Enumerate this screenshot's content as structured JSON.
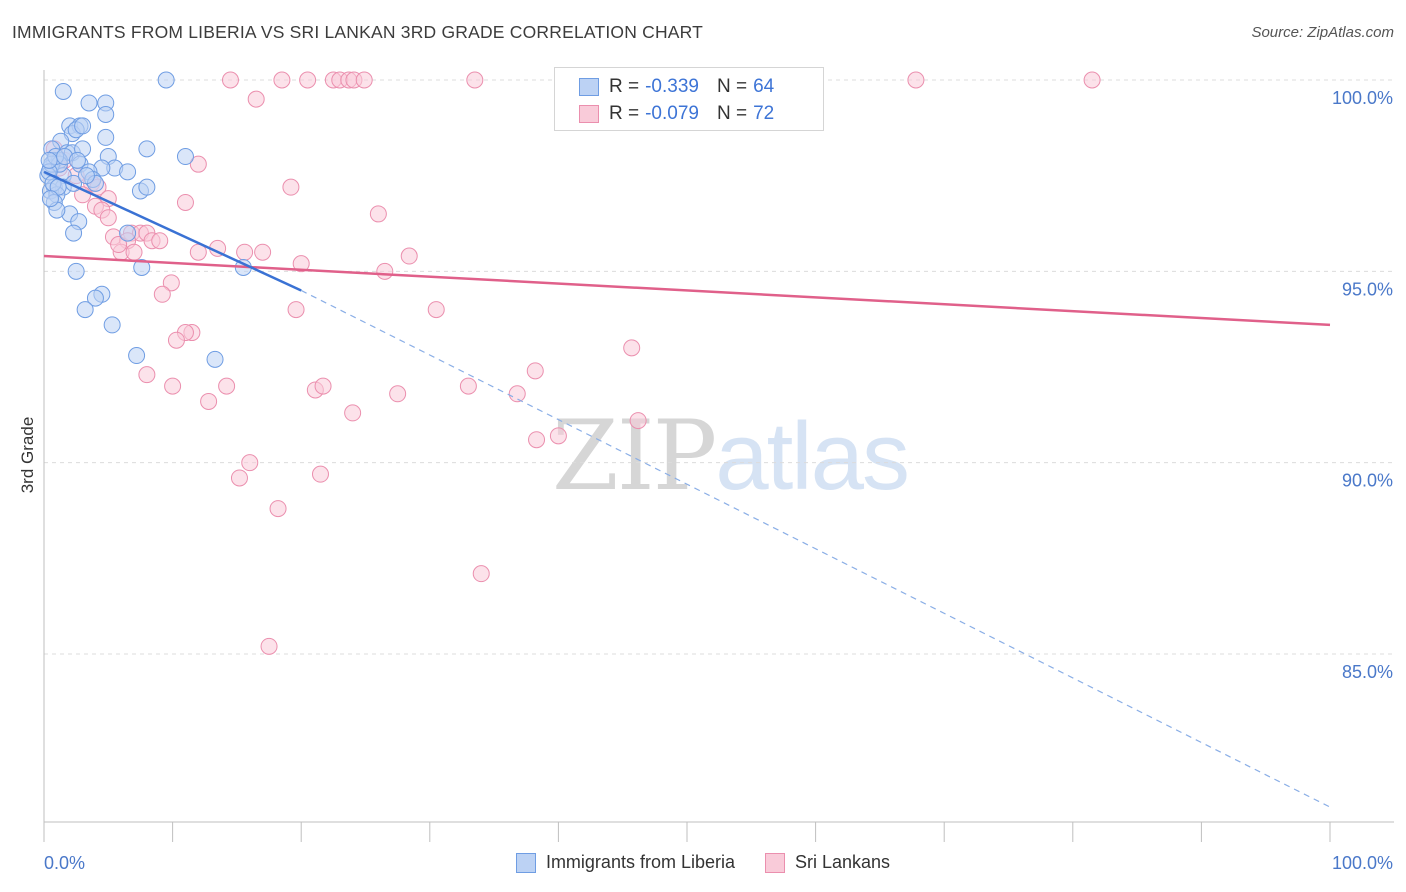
{
  "title": "IMMIGRANTS FROM LIBERIA VS SRI LANKAN 3RD GRADE CORRELATION CHART",
  "source": "Source: ZipAtlas.com",
  "watermark": {
    "zip": "ZIP",
    "atlas": "atlas"
  },
  "legend": {
    "r_label": "R =",
    "n_label": "N =",
    "series": [
      {
        "name": "Immigrants from Liberia",
        "r": "-0.339",
        "n": "64",
        "color": "#6f9de3",
        "fill": "#bcd2f4"
      },
      {
        "name": "Sri Lankans",
        "r": "-0.079",
        "n": "72",
        "color": "#eb8fae",
        "fill": "#f9cbd9"
      }
    ]
  },
  "chart_data": {
    "type": "scatter",
    "title": "IMMIGRANTS FROM LIBERIA VS SRI LANKAN 3RD GRADE CORRELATION CHART",
    "xlabel": "",
    "ylabel": "3rd Grade",
    "xlim": [
      0,
      100
    ],
    "ylim": [
      80.8,
      100.7
    ],
    "x_tick_labels": [
      "0.0%",
      "100.0%"
    ],
    "y_ticks": [
      85,
      90,
      95,
      100
    ],
    "y_tick_labels": [
      "85.0%",
      "90.0%",
      "95.0%",
      "100.0%"
    ],
    "grid": "horizontal dashed",
    "legend_position": "top-center",
    "series": [
      {
        "name": "Immigrants from Liberia",
        "color": "#6f9de3",
        "trend": {
          "x": [
            0,
            20
          ],
          "y": [
            97.6,
            94.5
          ],
          "extended_to": [
            100,
            81.0
          ]
        },
        "points": [
          [
            1.5,
            99.7
          ],
          [
            3.5,
            99.4
          ],
          [
            4.8,
            99.4
          ],
          [
            9.5,
            100.0
          ],
          [
            2.0,
            98.8
          ],
          [
            2.8,
            98.8
          ],
          [
            2.2,
            98.6
          ],
          [
            4.8,
            99.1
          ],
          [
            2.5,
            98.7
          ],
          [
            3.0,
            98.8
          ],
          [
            1.3,
            98.4
          ],
          [
            4.8,
            98.5
          ],
          [
            8.0,
            98.2
          ],
          [
            1.8,
            98.1
          ],
          [
            0.6,
            98.2
          ],
          [
            2.2,
            98.1
          ],
          [
            3.0,
            98.2
          ],
          [
            5.0,
            98.0
          ],
          [
            11.0,
            98.0
          ],
          [
            0.8,
            97.9
          ],
          [
            1.2,
            97.9
          ],
          [
            2.8,
            97.8
          ],
          [
            5.5,
            97.7
          ],
          [
            4.5,
            97.7
          ],
          [
            6.5,
            97.6
          ],
          [
            0.5,
            97.7
          ],
          [
            3.5,
            97.6
          ],
          [
            0.3,
            97.5
          ],
          [
            1.5,
            97.5
          ],
          [
            3.8,
            97.4
          ],
          [
            4.0,
            97.3
          ],
          [
            0.8,
            97.2
          ],
          [
            1.5,
            97.2
          ],
          [
            2.3,
            97.3
          ],
          [
            0.5,
            97.1
          ],
          [
            1.0,
            97.0
          ],
          [
            7.5,
            97.1
          ],
          [
            8.0,
            97.2
          ],
          [
            0.8,
            96.8
          ],
          [
            2.0,
            96.5
          ],
          [
            1.0,
            96.6
          ],
          [
            2.7,
            96.3
          ],
          [
            2.3,
            96.0
          ],
          [
            6.5,
            96.0
          ],
          [
            7.6,
            95.1
          ],
          [
            15.5,
            95.1
          ],
          [
            2.5,
            95.0
          ],
          [
            4.5,
            94.4
          ],
          [
            4.0,
            94.3
          ],
          [
            3.2,
            94.0
          ],
          [
            5.3,
            93.6
          ],
          [
            7.2,
            92.8
          ],
          [
            13.3,
            92.7
          ],
          [
            0.6,
            97.8
          ],
          [
            1.2,
            97.8
          ],
          [
            0.4,
            97.6
          ],
          [
            0.9,
            98.0
          ],
          [
            0.7,
            97.3
          ],
          [
            1.1,
            97.2
          ],
          [
            3.3,
            97.5
          ],
          [
            0.4,
            97.9
          ],
          [
            1.6,
            98.0
          ],
          [
            2.6,
            97.9
          ],
          [
            0.5,
            96.9
          ]
        ]
      },
      {
        "name": "Sri Lankans",
        "color": "#eb8fae",
        "trend": {
          "x": [
            0,
            100
          ],
          "y": [
            95.4,
            93.6
          ]
        },
        "points": [
          [
            14.5,
            100.0
          ],
          [
            18.5,
            100.0
          ],
          [
            20.5,
            100.0
          ],
          [
            22.5,
            100.0
          ],
          [
            23.0,
            100.0
          ],
          [
            23.7,
            100.0
          ],
          [
            24.1,
            100.0
          ],
          [
            24.9,
            100.0
          ],
          [
            33.5,
            100.0
          ],
          [
            67.8,
            100.0
          ],
          [
            81.5,
            100.0
          ],
          [
            16.5,
            99.5
          ],
          [
            12.0,
            97.8
          ],
          [
            19.2,
            97.2
          ],
          [
            11.0,
            96.8
          ],
          [
            26.0,
            96.5
          ],
          [
            0.8,
            98.2
          ],
          [
            1.6,
            97.9
          ],
          [
            2.5,
            97.5
          ],
          [
            3.7,
            97.3
          ],
          [
            4.2,
            97.2
          ],
          [
            5.0,
            96.9
          ],
          [
            4.0,
            96.7
          ],
          [
            4.5,
            96.6
          ],
          [
            5.0,
            96.4
          ],
          [
            6.8,
            96.0
          ],
          [
            7.5,
            96.0
          ],
          [
            8.0,
            96.0
          ],
          [
            5.4,
            95.9
          ],
          [
            6.5,
            95.8
          ],
          [
            8.4,
            95.8
          ],
          [
            9.0,
            95.8
          ],
          [
            12.0,
            95.5
          ],
          [
            13.5,
            95.6
          ],
          [
            6.0,
            95.5
          ],
          [
            15.6,
            95.5
          ],
          [
            17.0,
            95.5
          ],
          [
            28.4,
            95.4
          ],
          [
            20.0,
            95.2
          ],
          [
            26.5,
            95.0
          ],
          [
            9.9,
            94.7
          ],
          [
            9.2,
            94.4
          ],
          [
            19.6,
            94.0
          ],
          [
            30.5,
            94.0
          ],
          [
            11.5,
            93.4
          ],
          [
            11.0,
            93.4
          ],
          [
            10.3,
            93.2
          ],
          [
            45.7,
            93.0
          ],
          [
            10.0,
            92.0
          ],
          [
            8.0,
            92.3
          ],
          [
            14.2,
            92.0
          ],
          [
            21.1,
            91.9
          ],
          [
            21.7,
            92.0
          ],
          [
            27.5,
            91.8
          ],
          [
            33.0,
            92.0
          ],
          [
            38.2,
            92.4
          ],
          [
            36.8,
            91.8
          ],
          [
            12.8,
            91.6
          ],
          [
            24.0,
            91.3
          ],
          [
            46.2,
            91.1
          ],
          [
            38.3,
            90.6
          ],
          [
            40.0,
            90.7
          ],
          [
            16.0,
            90.0
          ],
          [
            15.2,
            89.6
          ],
          [
            21.5,
            89.7
          ],
          [
            18.2,
            88.8
          ],
          [
            34.0,
            87.1
          ],
          [
            17.5,
            85.2
          ],
          [
            1.2,
            97.7
          ],
          [
            3.0,
            97.0
          ],
          [
            5.8,
            95.7
          ],
          [
            7.0,
            95.5
          ]
        ]
      }
    ]
  }
}
